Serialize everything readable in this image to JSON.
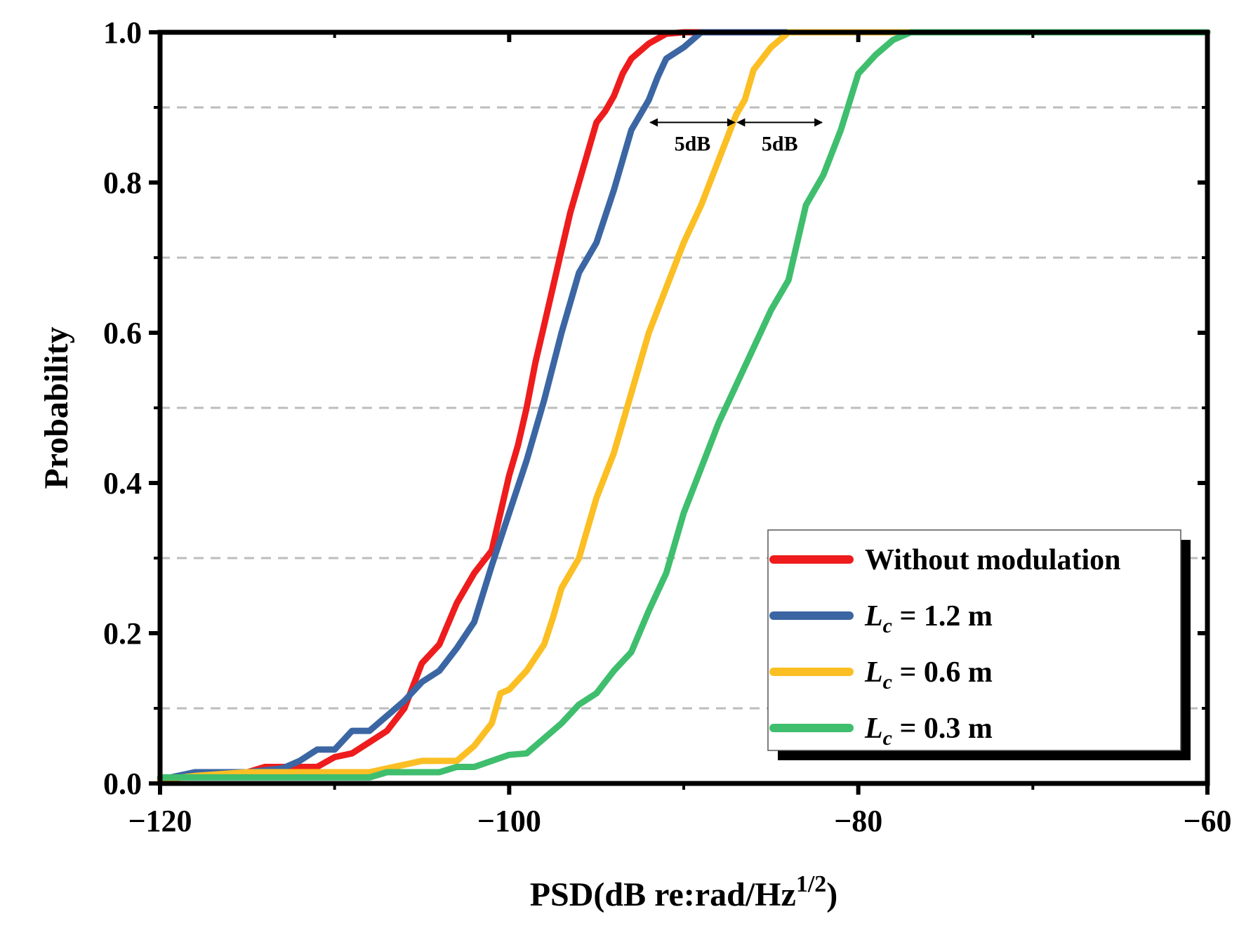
{
  "chart_data": {
    "type": "line",
    "title": "",
    "xlabel": "PSD(dB re:rad/Hz",
    "xlabel_sup": "1/2",
    "xlabel_end": ")",
    "ylabel": "Probability",
    "xlim": [
      -120,
      -60
    ],
    "ylim": [
      0,
      1
    ],
    "xticks": [
      -120,
      -100,
      -80,
      -60
    ],
    "xtick_labels": [
      "−120",
      "−100",
      "−80",
      "−60"
    ],
    "yticks": [
      0,
      0.2,
      0.4,
      0.6,
      0.8,
      1.0
    ],
    "ytick_labels": [
      "0.0",
      "0.2",
      "0.4",
      "0.6",
      "0.8",
      "1.0"
    ],
    "gridlines_y": [
      0.1,
      0.3,
      0.5,
      0.7,
      0.9
    ],
    "legend_position": "bottom-right",
    "series": [
      {
        "name": "Without modulation",
        "label_main": "Without modulation",
        "label_sub": "",
        "label_rest": "",
        "color": "#ee1c1c",
        "points": [
          [
            -120,
            0.005
          ],
          [
            -118,
            0.01
          ],
          [
            -115,
            0.015
          ],
          [
            -114,
            0.022
          ],
          [
            -113,
            0.022
          ],
          [
            -112,
            0.022
          ],
          [
            -111,
            0.022
          ],
          [
            -110,
            0.035
          ],
          [
            -109,
            0.04
          ],
          [
            -108,
            0.055
          ],
          [
            -107,
            0.07
          ],
          [
            -106,
            0.1
          ],
          [
            -105,
            0.16
          ],
          [
            -104,
            0.185
          ],
          [
            -103,
            0.24
          ],
          [
            -102,
            0.28
          ],
          [
            -101,
            0.31
          ],
          [
            -100.5,
            0.36
          ],
          [
            -100,
            0.41
          ],
          [
            -99.5,
            0.45
          ],
          [
            -99,
            0.5
          ],
          [
            -98.5,
            0.56
          ],
          [
            -98,
            0.61
          ],
          [
            -97.5,
            0.66
          ],
          [
            -97,
            0.71
          ],
          [
            -96.5,
            0.76
          ],
          [
            -96,
            0.8
          ],
          [
            -95.5,
            0.84
          ],
          [
            -95,
            0.88
          ],
          [
            -94.5,
            0.895
          ],
          [
            -94,
            0.915
          ],
          [
            -93.5,
            0.945
          ],
          [
            -93,
            0.965
          ],
          [
            -92,
            0.985
          ],
          [
            -91,
            0.998
          ],
          [
            -90,
            1.0
          ],
          [
            -60,
            1.0
          ]
        ]
      },
      {
        "name": "L_c = 1.2 m",
        "label_main": "L",
        "label_sub": "c",
        "label_rest": " = 1.2 m",
        "color": "#3b66a3",
        "points": [
          [
            -120,
            0.005
          ],
          [
            -118,
            0.015
          ],
          [
            -115,
            0.015
          ],
          [
            -113,
            0.02
          ],
          [
            -112,
            0.03
          ],
          [
            -111,
            0.045
          ],
          [
            -110,
            0.045
          ],
          [
            -109,
            0.07
          ],
          [
            -108,
            0.07
          ],
          [
            -107,
            0.09
          ],
          [
            -106,
            0.11
          ],
          [
            -105,
            0.135
          ],
          [
            -104,
            0.15
          ],
          [
            -103,
            0.18
          ],
          [
            -102,
            0.215
          ],
          [
            -101,
            0.29
          ],
          [
            -100,
            0.36
          ],
          [
            -99,
            0.43
          ],
          [
            -98,
            0.51
          ],
          [
            -97,
            0.6
          ],
          [
            -96,
            0.68
          ],
          [
            -95,
            0.72
          ],
          [
            -94,
            0.79
          ],
          [
            -93,
            0.87
          ],
          [
            -92,
            0.91
          ],
          [
            -91.5,
            0.94
          ],
          [
            -91,
            0.965
          ],
          [
            -90,
            0.98
          ],
          [
            -89,
            1.0
          ],
          [
            -60,
            1.0
          ]
        ]
      },
      {
        "name": "L_c = 0.6 m",
        "label_main": "L",
        "label_sub": "c",
        "label_rest": " = 0.6 m",
        "color": "#fbbf24",
        "points": [
          [
            -120,
            0.005
          ],
          [
            -118,
            0.01
          ],
          [
            -115,
            0.015
          ],
          [
            -113,
            0.015
          ],
          [
            -110,
            0.015
          ],
          [
            -108,
            0.015
          ],
          [
            -106,
            0.025
          ],
          [
            -105,
            0.03
          ],
          [
            -104,
            0.03
          ],
          [
            -103,
            0.03
          ],
          [
            -102,
            0.05
          ],
          [
            -101,
            0.08
          ],
          [
            -100.5,
            0.12
          ],
          [
            -100,
            0.125
          ],
          [
            -99,
            0.15
          ],
          [
            -98,
            0.185
          ],
          [
            -97.5,
            0.22
          ],
          [
            -97,
            0.26
          ],
          [
            -96,
            0.3
          ],
          [
            -95.5,
            0.34
          ],
          [
            -95,
            0.38
          ],
          [
            -94,
            0.44
          ],
          [
            -93,
            0.52
          ],
          [
            -92,
            0.6
          ],
          [
            -91,
            0.66
          ],
          [
            -90,
            0.72
          ],
          [
            -89,
            0.77
          ],
          [
            -88,
            0.83
          ],
          [
            -87,
            0.89
          ],
          [
            -86.5,
            0.91
          ],
          [
            -86,
            0.95
          ],
          [
            -85,
            0.98
          ],
          [
            -84,
            1.0
          ],
          [
            -60,
            1.0
          ]
        ]
      },
      {
        "name": "L_c = 0.3 m",
        "label_main": "L",
        "label_sub": "c",
        "label_rest": " = 0.3 m",
        "color": "#3fbe6e",
        "points": [
          [
            -120,
            0.008
          ],
          [
            -115,
            0.008
          ],
          [
            -110,
            0.008
          ],
          [
            -108,
            0.008
          ],
          [
            -107,
            0.015
          ],
          [
            -106,
            0.015
          ],
          [
            -104,
            0.015
          ],
          [
            -103,
            0.022
          ],
          [
            -102,
            0.022
          ],
          [
            -101,
            0.03
          ],
          [
            -100,
            0.038
          ],
          [
            -99,
            0.04
          ],
          [
            -98,
            0.06
          ],
          [
            -97,
            0.08
          ],
          [
            -96,
            0.105
          ],
          [
            -95,
            0.12
          ],
          [
            -94,
            0.15
          ],
          [
            -93,
            0.175
          ],
          [
            -92,
            0.23
          ],
          [
            -91,
            0.28
          ],
          [
            -90,
            0.36
          ],
          [
            -89,
            0.42
          ],
          [
            -88,
            0.48
          ],
          [
            -87,
            0.53
          ],
          [
            -86,
            0.58
          ],
          [
            -85,
            0.63
          ],
          [
            -84,
            0.67
          ],
          [
            -83,
            0.77
          ],
          [
            -82,
            0.81
          ],
          [
            -81,
            0.87
          ],
          [
            -80,
            0.945
          ],
          [
            -79,
            0.97
          ],
          [
            -78,
            0.99
          ],
          [
            -77,
            1.0
          ],
          [
            -60,
            1.0
          ]
        ]
      }
    ],
    "annotations": [
      {
        "text": "5dB",
        "from_x": -92,
        "to_x": -87,
        "y": 0.88
      },
      {
        "text": "5dB",
        "from_x": -87,
        "to_x": -82,
        "y": 0.88
      }
    ]
  }
}
